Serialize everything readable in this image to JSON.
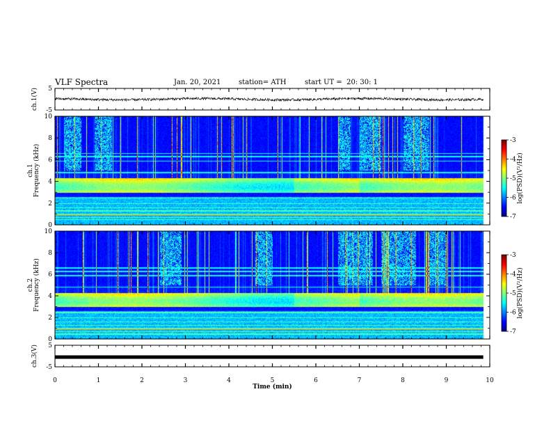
{
  "header": {
    "title": "VLF Spectra",
    "date": "Jan. 20, 2021",
    "station": "station= ATH",
    "start": "start UT =  20: 30: 1"
  },
  "chart_data": [
    {
      "type": "line",
      "name": "ch1-waveform",
      "ylabel": "ch.1(V)",
      "ylim": [
        -5,
        5
      ],
      "yticks": [
        "5",
        "-5"
      ],
      "xlim": [
        0,
        10
      ],
      "level": 0.0,
      "noise_amplitude": 0.6
    },
    {
      "type": "heatmap",
      "name": "ch1-spectrogram",
      "ylabel": "ch.1\nFrequency (kHz)",
      "ylim": [
        0,
        10
      ],
      "yticks": [
        "0",
        "2",
        "4",
        "6",
        "8",
        "10"
      ],
      "xlim": [
        0,
        10
      ],
      "colorbar": {
        "label": "log(PSD)(V²/Hz)",
        "ticks": [
          "-3",
          "-4",
          "-5",
          "-6",
          "-7"
        ],
        "range": [
          -7,
          -3
        ]
      }
    },
    {
      "type": "heatmap",
      "name": "ch2-spectrogram",
      "ylabel": "ch.2\nFrequency (kHz)",
      "ylim": [
        0,
        10
      ],
      "yticks": [
        "0",
        "2",
        "4",
        "6",
        "8",
        "10"
      ],
      "xlim": [
        0,
        10
      ],
      "colorbar": {
        "label": "log(PSD)(V²/Hz)",
        "ticks": [
          "-3",
          "-4",
          "-5",
          "-6",
          "-7"
        ],
        "range": [
          -7,
          -3
        ]
      }
    },
    {
      "type": "line",
      "name": "ch3-waveform",
      "ylabel": "ch.3(V)",
      "ylim": [
        -5,
        5
      ],
      "yticks": [
        "5",
        "-5"
      ],
      "xlim": [
        0,
        10
      ],
      "level": -0.5,
      "noise_amplitude": 0.0
    }
  ],
  "x_axis": {
    "label": "Time (min)",
    "ticks": [
      "0",
      "1",
      "2",
      "3",
      "4",
      "5",
      "6",
      "7",
      "8",
      "9",
      "10"
    ],
    "data_end_min": 9.85
  }
}
